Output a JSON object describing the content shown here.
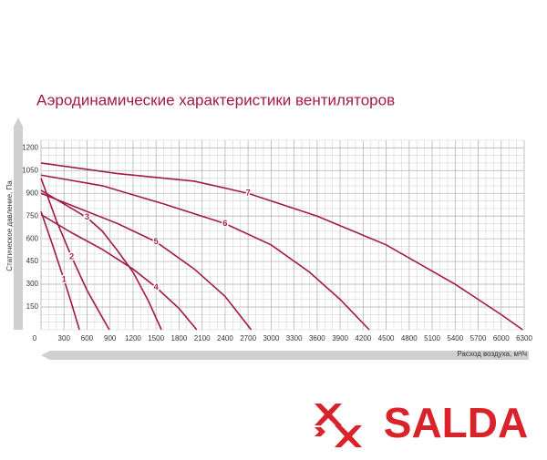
{
  "chart_data": {
    "type": "line",
    "title": "Аэродинамические характеристики вентиляторов",
    "y_label": "Статическое давление, Па",
    "x_label": "Расход воздуха, м³/ч",
    "xlim": [
      0,
      6300
    ],
    "ylim": [
      0,
      1250
    ],
    "xticks": [
      0,
      300,
      600,
      900,
      1200,
      1500,
      1800,
      2100,
      2400,
      2700,
      3000,
      3300,
      3600,
      3900,
      4200,
      4500,
      4800,
      5100,
      5400,
      5700,
      6000,
      6300
    ],
    "yticks": [
      150,
      300,
      450,
      600,
      750,
      900,
      1050,
      1200
    ],
    "grid": true,
    "series": [
      {
        "name": "1",
        "color": "#a31a44",
        "x": [
          0,
          150,
          300,
          400,
          500
        ],
        "values": [
          780,
          560,
          330,
          170,
          0
        ]
      },
      {
        "name": "2",
        "color": "#a31a44",
        "x": [
          0,
          200,
          400,
          600,
          800,
          890
        ],
        "values": [
          1000,
          720,
          480,
          260,
          80,
          0
        ]
      },
      {
        "name": "3",
        "color": "#a31a44",
        "x": [
          0,
          300,
          600,
          800,
          1000,
          1200,
          1400,
          1570
        ],
        "values": [
          920,
          830,
          740,
          650,
          520,
          380,
          190,
          0
        ]
      },
      {
        "name": "4",
        "color": "#a31a44",
        "x": [
          0,
          400,
          800,
          1200,
          1500,
          1800,
          2030
        ],
        "values": [
          760,
          640,
          530,
          400,
          280,
          140,
          0
        ]
      },
      {
        "name": "5",
        "color": "#a31a44",
        "x": [
          0,
          500,
          1000,
          1500,
          2000,
          2400,
          2740
        ],
        "values": [
          900,
          800,
          700,
          580,
          400,
          220,
          0
        ]
      },
      {
        "name": "6",
        "color": "#a31a44",
        "x": [
          0,
          800,
          1600,
          2400,
          3000,
          3500,
          3900,
          4280
        ],
        "values": [
          1020,
          950,
          830,
          700,
          560,
          380,
          200,
          0
        ]
      },
      {
        "name": "7",
        "color": "#a31a44",
        "x": [
          0,
          1000,
          2000,
          2700,
          3600,
          4500,
          5400,
          6000,
          6280
        ],
        "values": [
          1100,
          1030,
          980,
          900,
          750,
          560,
          300,
          100,
          0
        ]
      }
    ]
  },
  "logo": "SALDA"
}
